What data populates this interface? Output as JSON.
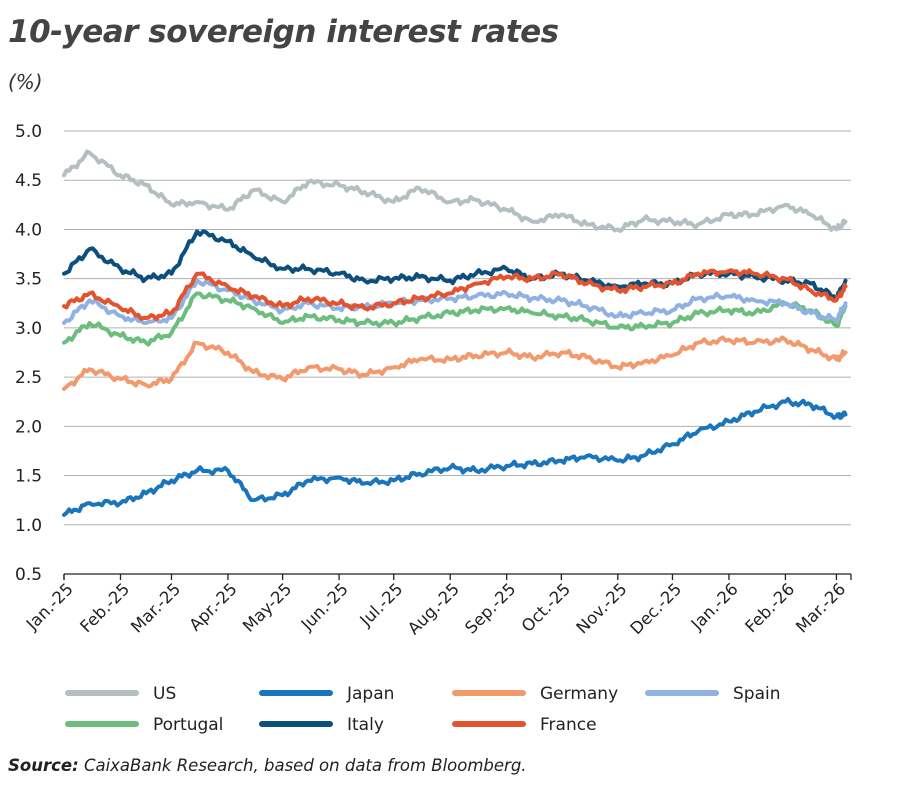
{
  "source": {
    "label": "Source:",
    "text": "CaixaBank Research, based on data from Bloomberg."
  },
  "chart_data": {
    "type": "line",
    "title": "10-year sovereign interest rates",
    "ylabel": "(%)",
    "xlabel": "",
    "ylim": [
      0.5,
      5.0
    ],
    "yticks": [
      "5.0",
      "4.5",
      "4.0",
      "3.5",
      "3.0",
      "2.5",
      "2.0",
      "1.5",
      "1.0",
      "0.5"
    ],
    "ytick_values": [
      5.0,
      4.5,
      4.0,
      3.5,
      3.0,
      2.5,
      2.0,
      1.5,
      1.0,
      0.5
    ],
    "xtick_labels": [
      "Jan.-25",
      "Feb.-25",
      "Mar.-25",
      "Apr.-25",
      "May-25",
      "Jun.-25",
      "Jul.-25",
      "Aug.-25",
      "Sep.-25",
      "Oct.-25",
      "Nov.-25",
      "Dec.-25",
      "Jan.-26",
      "Feb.-26",
      "Mar.-26"
    ],
    "xtick_dates": [
      "2025-01-01",
      "2025-02-01",
      "2025-03-01",
      "2025-04-01",
      "2025-05-01",
      "2025-06-01",
      "2025-07-01",
      "2025-08-01",
      "2025-09-01",
      "2025-10-01",
      "2025-11-01",
      "2025-12-01",
      "2026-01-01",
      "2026-02-01",
      "2026-03-01"
    ],
    "grid": "horizontal",
    "legend_position": "bottom",
    "x": [
      "2025-01-01",
      "2025-01-15",
      "2025-02-01",
      "2025-02-15",
      "2025-03-01",
      "2025-03-15",
      "2025-04-01",
      "2025-04-15",
      "2025-05-01",
      "2025-05-15",
      "2025-06-01",
      "2025-06-15",
      "2025-07-01",
      "2025-07-15",
      "2025-08-01",
      "2025-08-15",
      "2025-09-01",
      "2025-09-15",
      "2025-10-01",
      "2025-10-15",
      "2025-11-01",
      "2025-11-15",
      "2025-12-01",
      "2025-12-15",
      "2026-01-01",
      "2026-01-15",
      "2026-02-01",
      "2026-02-15",
      "2026-03-01",
      "2026-03-06"
    ],
    "series": [
      {
        "name": "US",
        "color": "#b4bfc2",
        "values": [
          4.55,
          4.78,
          4.55,
          4.45,
          4.25,
          4.28,
          4.2,
          4.4,
          4.28,
          4.48,
          4.45,
          4.38,
          4.28,
          4.42,
          4.28,
          4.3,
          4.2,
          4.08,
          4.15,
          4.05,
          4.0,
          4.1,
          4.08,
          4.05,
          4.15,
          4.15,
          4.25,
          4.15,
          4.0,
          4.08
        ]
      },
      {
        "name": "Japan",
        "color": "#1b75bb",
        "values": [
          1.1,
          1.22,
          1.22,
          1.32,
          1.45,
          1.55,
          1.55,
          1.25,
          1.3,
          1.45,
          1.48,
          1.42,
          1.45,
          1.52,
          1.58,
          1.55,
          1.6,
          1.62,
          1.65,
          1.7,
          1.65,
          1.7,
          1.82,
          1.95,
          2.05,
          2.15,
          2.25,
          2.22,
          2.1,
          2.12
        ]
      },
      {
        "name": "Germany",
        "color": "#f29a6e",
        "values": [
          2.38,
          2.58,
          2.48,
          2.42,
          2.48,
          2.85,
          2.75,
          2.55,
          2.48,
          2.6,
          2.58,
          2.52,
          2.6,
          2.68,
          2.68,
          2.72,
          2.75,
          2.7,
          2.75,
          2.7,
          2.6,
          2.65,
          2.72,
          2.85,
          2.88,
          2.85,
          2.88,
          2.78,
          2.68,
          2.75
        ]
      },
      {
        "name": "Spain",
        "color": "#8fb2e3",
        "values": [
          3.05,
          3.28,
          3.12,
          3.05,
          3.1,
          3.48,
          3.38,
          3.28,
          3.18,
          3.25,
          3.2,
          3.22,
          3.25,
          3.28,
          3.3,
          3.32,
          3.35,
          3.3,
          3.28,
          3.22,
          3.12,
          3.15,
          3.18,
          3.3,
          3.32,
          3.28,
          3.25,
          3.15,
          3.08,
          3.25
        ]
      },
      {
        "name": "Portugal",
        "color": "#6cbd7e",
        "values": [
          2.85,
          3.05,
          2.92,
          2.85,
          2.95,
          3.35,
          3.28,
          3.2,
          3.05,
          3.12,
          3.08,
          3.05,
          3.05,
          3.1,
          3.15,
          3.18,
          3.2,
          3.15,
          3.12,
          3.08,
          3.0,
          3.02,
          3.05,
          3.15,
          3.18,
          3.15,
          3.25,
          3.18,
          3.02,
          3.22
        ]
      },
      {
        "name": "Italy",
        "color": "#0d4f7c",
        "values": [
          3.55,
          3.8,
          3.6,
          3.5,
          3.55,
          3.98,
          3.88,
          3.72,
          3.6,
          3.6,
          3.55,
          3.48,
          3.5,
          3.52,
          3.48,
          3.55,
          3.6,
          3.5,
          3.55,
          3.48,
          3.42,
          3.45,
          3.45,
          3.55,
          3.55,
          3.52,
          3.48,
          3.45,
          3.3,
          3.48
        ]
      },
      {
        "name": "France",
        "color": "#e2532e",
        "values": [
          3.22,
          3.35,
          3.2,
          3.1,
          3.15,
          3.55,
          3.42,
          3.32,
          3.22,
          3.3,
          3.25,
          3.2,
          3.25,
          3.3,
          3.35,
          3.45,
          3.52,
          3.5,
          3.55,
          3.45,
          3.38,
          3.42,
          3.45,
          3.55,
          3.58,
          3.55,
          3.5,
          3.38,
          3.28,
          3.42
        ]
      }
    ]
  }
}
